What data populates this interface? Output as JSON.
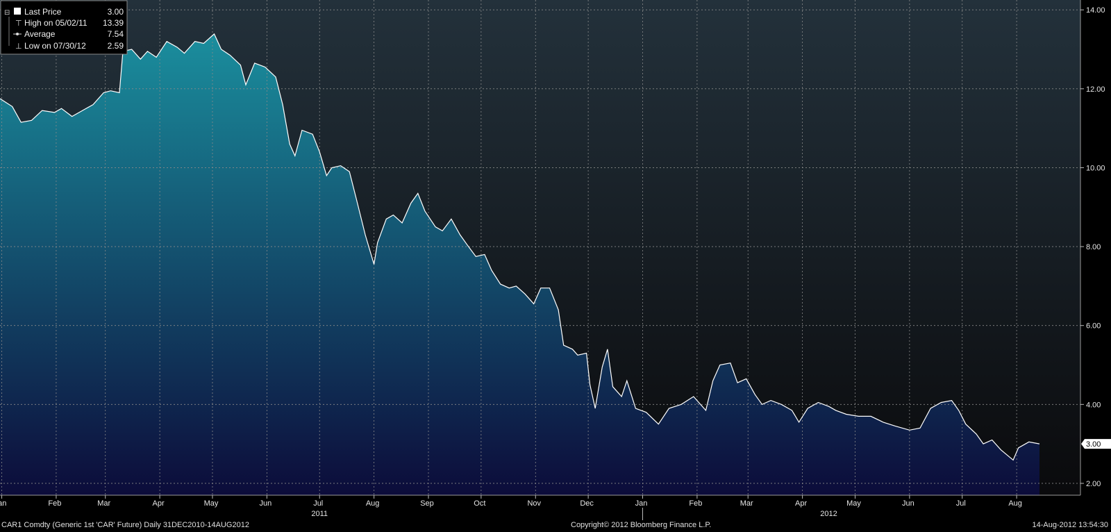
{
  "chart_data": {
    "type": "area",
    "x_start": "2010-12-31",
    "x_end": "2012-08-14",
    "ylim": [
      1.7,
      14.25
    ],
    "yticks": [
      2,
      4,
      6,
      8,
      10,
      12,
      14
    ],
    "ytick_labels": [
      "2.00",
      "4.00",
      "6.00",
      "8.00",
      "10.00",
      "12.00",
      "14.00"
    ],
    "month_ticks": [
      {
        "label": "Jan",
        "date": "2011-01-01"
      },
      {
        "label": "Feb",
        "date": "2011-02-01"
      },
      {
        "label": "Mar",
        "date": "2011-03-01"
      },
      {
        "label": "Apr",
        "date": "2011-04-01"
      },
      {
        "label": "May",
        "date": "2011-05-01"
      },
      {
        "label": "Jun",
        "date": "2011-06-01"
      },
      {
        "label": "Jul",
        "date": "2011-07-01"
      },
      {
        "label": "Aug",
        "date": "2011-08-01"
      },
      {
        "label": "Sep",
        "date": "2011-09-01"
      },
      {
        "label": "Oct",
        "date": "2011-10-01"
      },
      {
        "label": "Nov",
        "date": "2011-11-01"
      },
      {
        "label": "Dec",
        "date": "2011-12-01"
      },
      {
        "label": "Jan",
        "date": "2012-01-01"
      },
      {
        "label": "Feb",
        "date": "2012-02-01"
      },
      {
        "label": "Mar",
        "date": "2012-03-01"
      },
      {
        "label": "Apr",
        "date": "2012-04-01"
      },
      {
        "label": "May",
        "date": "2012-05-01"
      },
      {
        "label": "Jun",
        "date": "2012-06-01"
      },
      {
        "label": "Jul",
        "date": "2012-07-01"
      },
      {
        "label": "Aug",
        "date": "2012-08-01"
      }
    ],
    "year_labels": [
      {
        "label": "2011",
        "date": "2011-07-01"
      },
      {
        "label": "2012",
        "date": "2012-04-16"
      }
    ],
    "year_boundary": "2012-01-01",
    "grid": true,
    "legend_position": "top-left",
    "series": [
      {
        "name": "Last Price",
        "points": [
          [
            "2010-12-31",
            11.75
          ],
          [
            "2011-01-07",
            11.55
          ],
          [
            "2011-01-12",
            11.15
          ],
          [
            "2011-01-18",
            11.2
          ],
          [
            "2011-01-24",
            11.45
          ],
          [
            "2011-01-31",
            11.4
          ],
          [
            "2011-02-04",
            11.5
          ],
          [
            "2011-02-10",
            11.3
          ],
          [
            "2011-02-16",
            11.45
          ],
          [
            "2011-02-22",
            11.6
          ],
          [
            "2011-02-28",
            11.9
          ],
          [
            "2011-03-04",
            11.95
          ],
          [
            "2011-03-09",
            11.9
          ],
          [
            "2011-03-11",
            12.95
          ],
          [
            "2011-03-16",
            13.0
          ],
          [
            "2011-03-21",
            12.75
          ],
          [
            "2011-03-25",
            12.95
          ],
          [
            "2011-03-30",
            12.8
          ],
          [
            "2011-04-05",
            13.2
          ],
          [
            "2011-04-11",
            13.05
          ],
          [
            "2011-04-15",
            12.9
          ],
          [
            "2011-04-21",
            13.2
          ],
          [
            "2011-04-26",
            13.15
          ],
          [
            "2011-05-02",
            13.39
          ],
          [
            "2011-05-06",
            13.0
          ],
          [
            "2011-05-11",
            12.85
          ],
          [
            "2011-05-17",
            12.6
          ],
          [
            "2011-05-20",
            12.1
          ],
          [
            "2011-05-25",
            12.65
          ],
          [
            "2011-05-31",
            12.55
          ],
          [
            "2011-06-06",
            12.3
          ],
          [
            "2011-06-10",
            11.6
          ],
          [
            "2011-06-14",
            10.6
          ],
          [
            "2011-06-17",
            10.3
          ],
          [
            "2011-06-21",
            10.95
          ],
          [
            "2011-06-27",
            10.85
          ],
          [
            "2011-07-01",
            10.4
          ],
          [
            "2011-07-05",
            9.8
          ],
          [
            "2011-07-08",
            10.0
          ],
          [
            "2011-07-13",
            10.05
          ],
          [
            "2011-07-18",
            9.9
          ],
          [
            "2011-07-22",
            9.2
          ],
          [
            "2011-07-27",
            8.3
          ],
          [
            "2011-08-01",
            7.55
          ],
          [
            "2011-08-03",
            8.1
          ],
          [
            "2011-08-08",
            8.7
          ],
          [
            "2011-08-12",
            8.8
          ],
          [
            "2011-08-17",
            8.6
          ],
          [
            "2011-08-22",
            9.1
          ],
          [
            "2011-08-26",
            9.35
          ],
          [
            "2011-08-30",
            8.9
          ],
          [
            "2011-09-05",
            8.5
          ],
          [
            "2011-09-09",
            8.4
          ],
          [
            "2011-09-14",
            8.7
          ],
          [
            "2011-09-19",
            8.3
          ],
          [
            "2011-09-23",
            8.05
          ],
          [
            "2011-09-28",
            7.75
          ],
          [
            "2011-10-03",
            7.8
          ],
          [
            "2011-10-07",
            7.4
          ],
          [
            "2011-10-12",
            7.05
          ],
          [
            "2011-10-17",
            6.95
          ],
          [
            "2011-10-21",
            7.0
          ],
          [
            "2011-10-26",
            6.8
          ],
          [
            "2011-10-31",
            6.55
          ],
          [
            "2011-11-04",
            6.95
          ],
          [
            "2011-11-09",
            6.95
          ],
          [
            "2011-11-14",
            6.4
          ],
          [
            "2011-11-17",
            5.5
          ],
          [
            "2011-11-22",
            5.4
          ],
          [
            "2011-11-25",
            5.25
          ],
          [
            "2011-11-30",
            5.3
          ],
          [
            "2011-12-02",
            4.5
          ],
          [
            "2011-12-05",
            3.9
          ],
          [
            "2011-12-09",
            4.95
          ],
          [
            "2011-12-12",
            5.4
          ],
          [
            "2011-12-15",
            4.45
          ],
          [
            "2011-12-20",
            4.2
          ],
          [
            "2011-12-23",
            4.6
          ],
          [
            "2011-12-28",
            3.9
          ],
          [
            "2012-01-03",
            3.8
          ],
          [
            "2012-01-10",
            3.5
          ],
          [
            "2012-01-16",
            3.9
          ],
          [
            "2012-01-23",
            4.0
          ],
          [
            "2012-01-30",
            4.2
          ],
          [
            "2012-02-06",
            3.85
          ],
          [
            "2012-02-10",
            4.6
          ],
          [
            "2012-02-14",
            5.0
          ],
          [
            "2012-02-20",
            5.05
          ],
          [
            "2012-02-24",
            4.55
          ],
          [
            "2012-02-29",
            4.65
          ],
          [
            "2012-03-05",
            4.25
          ],
          [
            "2012-03-09",
            4.0
          ],
          [
            "2012-03-14",
            4.1
          ],
          [
            "2012-03-20",
            4.0
          ],
          [
            "2012-03-26",
            3.85
          ],
          [
            "2012-03-30",
            3.55
          ],
          [
            "2012-04-04",
            3.9
          ],
          [
            "2012-04-10",
            4.05
          ],
          [
            "2012-04-16",
            3.95
          ],
          [
            "2012-04-20",
            3.85
          ],
          [
            "2012-04-26",
            3.75
          ],
          [
            "2012-05-03",
            3.7
          ],
          [
            "2012-05-10",
            3.7
          ],
          [
            "2012-05-17",
            3.55
          ],
          [
            "2012-05-24",
            3.45
          ],
          [
            "2012-06-01",
            3.35
          ],
          [
            "2012-06-07",
            3.4
          ],
          [
            "2012-06-13",
            3.9
          ],
          [
            "2012-06-19",
            4.05
          ],
          [
            "2012-06-25",
            4.1
          ],
          [
            "2012-06-29",
            3.85
          ],
          [
            "2012-07-03",
            3.5
          ],
          [
            "2012-07-09",
            3.25
          ],
          [
            "2012-07-13",
            3.0
          ],
          [
            "2012-07-18",
            3.1
          ],
          [
            "2012-07-23",
            2.85
          ],
          [
            "2012-07-30",
            2.59
          ],
          [
            "2012-08-02",
            2.9
          ],
          [
            "2012-08-08",
            3.05
          ],
          [
            "2012-08-14",
            3.0
          ]
        ]
      }
    ],
    "last_value_tag": "3.00"
  },
  "legend": {
    "rows": [
      {
        "label": "Last Price",
        "value": "3.00"
      },
      {
        "label": "High on 05/02/11",
        "value": "13.39"
      },
      {
        "label": "Average",
        "value": "7.54"
      },
      {
        "label": "Low on 07/30/12",
        "value": "2.59"
      }
    ]
  },
  "footer": {
    "left": "CAR1 Comdty (Generic 1st 'CAR' Future)  Daily 31DEC2010-14AUG2012",
    "center": "Copyright© 2012 Bloomberg Finance L.P.",
    "right": "14-Aug-2012 13:54:30"
  },
  "colors": {
    "area_top": "#1a8c9c",
    "area_bottom": "#0c0c3a",
    "bg_top": "#23313b",
    "bg_bottom": "#0a0a0c",
    "line": "#ffffff",
    "grid": "#8a8a8a"
  }
}
